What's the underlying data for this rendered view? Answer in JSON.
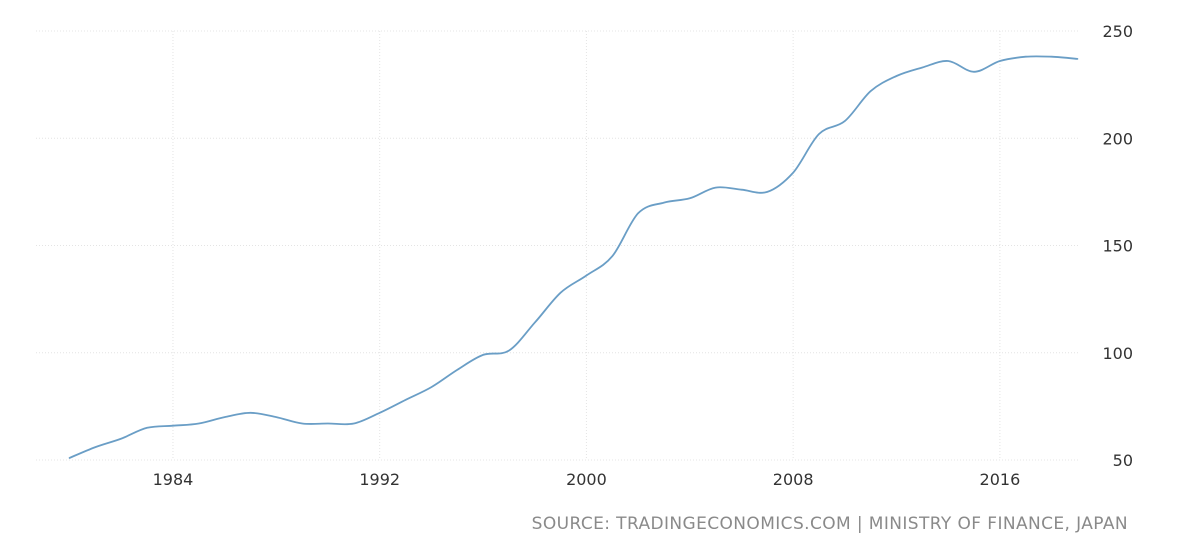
{
  "chart_data": {
    "type": "line",
    "title": "",
    "xlabel": "",
    "ylabel": "",
    "xlim": [
      1978.7,
      2019.1
    ],
    "ylim": [
      50,
      250
    ],
    "y_axis_position": "right",
    "grid": true,
    "x_ticks": [
      1984,
      1992,
      2000,
      2008,
      2016
    ],
    "y_ticks": [
      50,
      100,
      150,
      200,
      250
    ],
    "colors": {
      "line": "#6a9ec6",
      "grid": "#e4e4e4",
      "tick_text": "#333333"
    },
    "series": [
      {
        "x": [
          1980,
          1981,
          1982,
          1983,
          1984,
          1985,
          1986,
          1987,
          1988,
          1989,
          1990,
          1991,
          1992,
          1993,
          1994,
          1995,
          1996,
          1997,
          1998,
          1999,
          2000,
          2001,
          2002,
          2003,
          2004,
          2005,
          2006,
          2007,
          2008,
          2009,
          2010,
          2011,
          2012,
          2013,
          2014,
          2015,
          2016,
          2017,
          2018,
          2019
        ],
        "values": [
          51,
          56,
          60,
          65,
          66,
          67,
          70,
          72,
          70,
          67,
          67,
          67,
          72,
          78,
          84,
          92,
          99,
          101,
          114,
          128,
          136,
          145,
          165,
          170,
          172,
          177,
          176,
          175,
          184,
          202,
          208,
          222,
          229,
          233,
          236,
          231,
          236,
          238,
          238,
          237
        ]
      }
    ]
  },
  "source": "SOURCE: TRADINGECONOMICS.COM | MINISTRY OF FINANCE, JAPAN"
}
